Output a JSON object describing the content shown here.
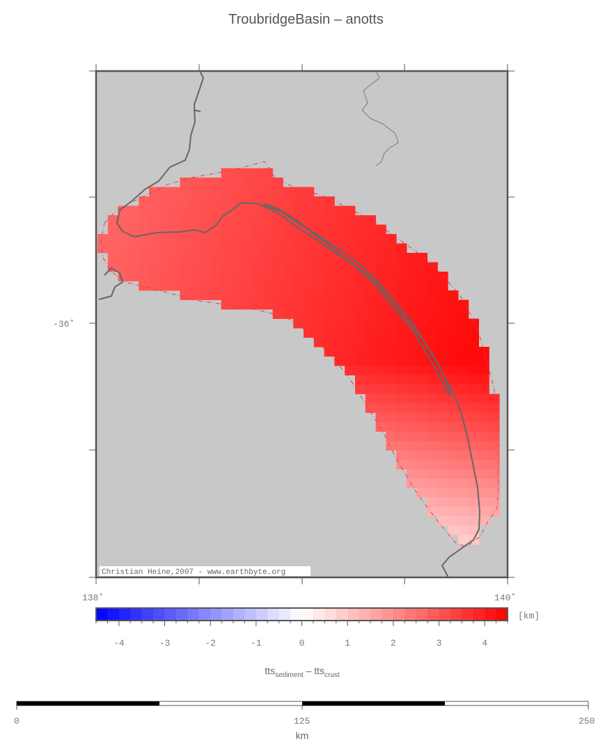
{
  "title": "TroubridgeBasin – anotts",
  "map": {
    "lat_label": "-36˚",
    "lon_left": "138˚",
    "lon_right": "140˚",
    "credit": "Christian Heine,2007 - www.earthbyte.org",
    "colors": {
      "frame": "#555555",
      "land": "#c8c8c8",
      "coast": "#666666",
      "outline": "#e04040"
    }
  },
  "colorbar": {
    "unit": "[km]",
    "ticks": [
      "-4",
      "-3",
      "-2",
      "-1",
      "0",
      "1",
      "2",
      "3",
      "4"
    ],
    "range": [
      -4.5,
      4.5
    ],
    "label_main": "tts",
    "label_sub1": "sediment",
    "label_mid": " – tts",
    "label_sub2": "crust",
    "colors": {
      "neg": "#0000ff",
      "zero": "#ffffff",
      "pos": "#ff0000"
    }
  },
  "scalebar": {
    "ticks": [
      "0",
      "125",
      "250"
    ],
    "unit": "km"
  }
}
